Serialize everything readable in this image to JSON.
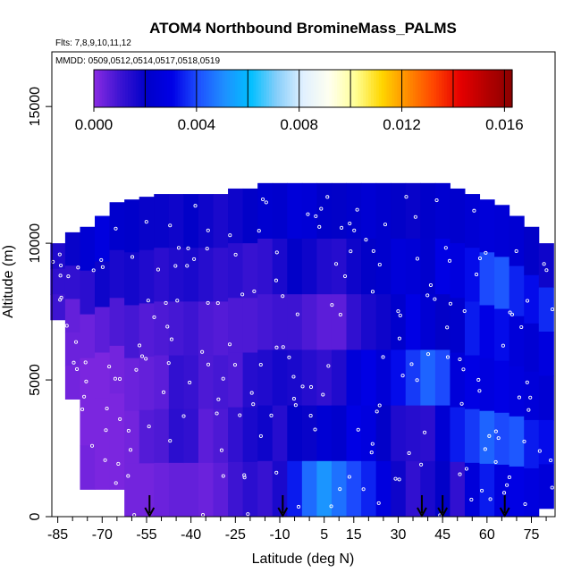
{
  "chart_data": {
    "type": "heatmap",
    "title": "ATOM4 Northbound BromineMass_PALMS",
    "flights_note": "Flts: 7,8,9,10,11,12",
    "dates_note": "MMDD: 0509,0512,0514,0517,0518,0519",
    "xlabel": "Latitude (deg N)",
    "ylabel": "Altitude (m)",
    "xlim": [
      -87,
      83
    ],
    "ylim": [
      0,
      17000
    ],
    "x_ticks": [
      -85,
      -70,
      -55,
      -40,
      -25,
      -10,
      5,
      15,
      30,
      45,
      60,
      75
    ],
    "x_tick_labels": [
      "-85",
      "-70",
      "-55",
      "-40",
      "-25",
      "-10",
      "5",
      "15",
      "30",
      "45",
      "60",
      "75"
    ],
    "y_ticks": [
      0,
      5000,
      10000,
      15000
    ],
    "y_tick_labels": [
      "0",
      "5000",
      "10000",
      "15000"
    ],
    "colorbar": {
      "min": 0.0,
      "max": 0.0163,
      "ticks": [
        0.0,
        0.004,
        0.008,
        0.012,
        0.016
      ],
      "tick_labels": [
        "0.000",
        "0.004",
        "0.008",
        "0.012",
        "0.016"
      ],
      "colors": [
        "#8a2be2",
        "#3c14d2",
        "#0000c8",
        "#0000e6",
        "#1e50ff",
        "#1e90ff",
        "#00bfff",
        "#87cefa",
        "#e0f0ff",
        "#fffff0",
        "#ffff96",
        "#ffd700",
        "#ff8c00",
        "#ff4500",
        "#e60000",
        "#b40000",
        "#8b0000"
      ]
    },
    "arrows_latitude": [
      -54,
      -9,
      38,
      45,
      66
    ],
    "columns": [
      {
        "lat": -85,
        "top": 10000,
        "bottom": 7200,
        "values": [
          0.0015,
          0.0012,
          0.001
        ]
      },
      {
        "lat": -80,
        "top": 10400,
        "bottom": 4300,
        "values": [
          0.0019,
          0.0012,
          0.0005,
          0.0004,
          0.0003
        ]
      },
      {
        "lat": -75,
        "top": 10600,
        "bottom": 1000,
        "values": [
          0.0024,
          0.0013,
          0.0004,
          0.0002,
          0.0002,
          0.0003
        ]
      },
      {
        "lat": -70,
        "top": 11000,
        "bottom": 1000,
        "values": [
          0.0028,
          0.0018,
          0.0006,
          0.0002,
          0.0002,
          0.0002
        ]
      },
      {
        "lat": -65,
        "top": 11500,
        "bottom": 1000,
        "values": [
          0.0022,
          0.0016,
          0.0008,
          0.0003,
          0.0002,
          0.0002
        ]
      },
      {
        "lat": -60,
        "top": 11600,
        "bottom": 0,
        "values": [
          0.0021,
          0.0017,
          0.0009,
          0.0004,
          0.0003,
          0.0003
        ]
      },
      {
        "lat": -55,
        "top": 11700,
        "bottom": 0,
        "values": [
          0.0019,
          0.0015,
          0.0007,
          0.0005,
          0.0007,
          0.0003
        ]
      },
      {
        "lat": -50,
        "top": 11800,
        "bottom": 0,
        "values": [
          0.0019,
          0.0013,
          0.0008,
          0.0006,
          0.0008,
          0.0004
        ]
      },
      {
        "lat": -45,
        "top": 11800,
        "bottom": 0,
        "values": [
          0.0018,
          0.0015,
          0.0009,
          0.0012,
          0.0013,
          0.0005
        ]
      },
      {
        "lat": -40,
        "top": 11800,
        "bottom": 0,
        "values": [
          0.002,
          0.0016,
          0.001,
          0.0011,
          0.0012,
          0.0005
        ]
      },
      {
        "lat": -35,
        "top": 11800,
        "bottom": 0,
        "values": [
          0.0018,
          0.0014,
          0.0008,
          0.0008,
          0.0006,
          0.0004
        ]
      },
      {
        "lat": -30,
        "top": 11800,
        "bottom": 0,
        "values": [
          0.0016,
          0.0012,
          0.0007,
          0.0009,
          0.0008,
          0.0006
        ]
      },
      {
        "lat": -25,
        "top": 12000,
        "bottom": 0,
        "values": [
          0.0018,
          0.0013,
          0.0008,
          0.0008,
          0.0012,
          0.001
        ]
      },
      {
        "lat": -20,
        "top": 12000,
        "bottom": 0,
        "values": [
          0.002,
          0.0011,
          0.0008,
          0.0014,
          0.0016,
          0.0013
        ]
      },
      {
        "lat": -15,
        "top": 12200,
        "bottom": 0,
        "values": [
          0.0023,
          0.0012,
          0.0009,
          0.0015,
          0.0018,
          0.0011
        ]
      },
      {
        "lat": -10,
        "top": 12200,
        "bottom": 0,
        "values": [
          0.0022,
          0.0016,
          0.001,
          0.0017,
          0.0014,
          0.0016
        ]
      },
      {
        "lat": -5,
        "top": 12200,
        "bottom": 0,
        "values": [
          0.0026,
          0.002,
          0.001,
          0.0016,
          0.002,
          0.0034
        ]
      },
      {
        "lat": 0,
        "top": 12200,
        "bottom": 0,
        "values": [
          0.0025,
          0.0018,
          0.0008,
          0.0014,
          0.0019,
          0.0045
        ]
      },
      {
        "lat": 5,
        "top": 12200,
        "bottom": 0,
        "values": [
          0.0021,
          0.0015,
          0.0006,
          0.0012,
          0.0024,
          0.0052
        ]
      },
      {
        "lat": 10,
        "top": 12200,
        "bottom": 0,
        "values": [
          0.002,
          0.0014,
          0.0006,
          0.0015,
          0.0022,
          0.0046
        ]
      },
      {
        "lat": 15,
        "top": 12200,
        "bottom": 0,
        "values": [
          0.0022,
          0.0018,
          0.0012,
          0.0026,
          0.003,
          0.004
        ]
      },
      {
        "lat": 20,
        "top": 12200,
        "bottom": 0,
        "values": [
          0.0024,
          0.002,
          0.0016,
          0.003,
          0.0028,
          0.0035
        ]
      },
      {
        "lat": 25,
        "top": 12200,
        "bottom": 0,
        "values": [
          0.0022,
          0.0022,
          0.0018,
          0.0025,
          0.002,
          0.0028
        ]
      },
      {
        "lat": 30,
        "top": 12200,
        "bottom": 0,
        "values": [
          0.002,
          0.0026,
          0.0022,
          0.0032,
          0.0015,
          0.0018
        ]
      },
      {
        "lat": 35,
        "top": 12200,
        "bottom": 0,
        "values": [
          0.0019,
          0.0025,
          0.003,
          0.0038,
          0.0014,
          0.0012
        ]
      },
      {
        "lat": 40,
        "top": 12200,
        "bottom": 0,
        "values": [
          0.0021,
          0.0022,
          0.0024,
          0.0044,
          0.0013,
          0.0016
        ]
      },
      {
        "lat": 45,
        "top": 12200,
        "bottom": 0,
        "values": [
          0.0023,
          0.003,
          0.002,
          0.004,
          0.0024,
          0.002
        ]
      },
      {
        "lat": 50,
        "top": 12000,
        "bottom": 0,
        "values": [
          0.0022,
          0.0028,
          0.0022,
          0.0026,
          0.0034,
          0.0012
        ]
      },
      {
        "lat": 55,
        "top": 11800,
        "bottom": 0,
        "values": [
          0.0024,
          0.0032,
          0.0034,
          0.003,
          0.0038,
          0.0026
        ]
      },
      {
        "lat": 60,
        "top": 11600,
        "bottom": 0,
        "values": [
          0.0026,
          0.004,
          0.003,
          0.0028,
          0.0044,
          0.0034
        ]
      },
      {
        "lat": 65,
        "top": 11400,
        "bottom": 0,
        "values": [
          0.0025,
          0.0042,
          0.0032,
          0.003,
          0.004,
          0.0028
        ]
      },
      {
        "lat": 70,
        "top": 11000,
        "bottom": 0,
        "values": [
          0.0024,
          0.0035,
          0.0026,
          0.0028,
          0.0042,
          0.003
        ]
      },
      {
        "lat": 75,
        "top": 10600,
        "bottom": 0,
        "values": [
          0.002,
          0.0032,
          0.0024,
          0.0026,
          0.0034,
          0.0028
        ]
      },
      {
        "lat": 80,
        "top": 10000,
        "bottom": 300,
        "values": [
          0.0018,
          0.0036,
          0.0028,
          0.0024,
          0.0032,
          0.0026
        ]
      }
    ]
  }
}
